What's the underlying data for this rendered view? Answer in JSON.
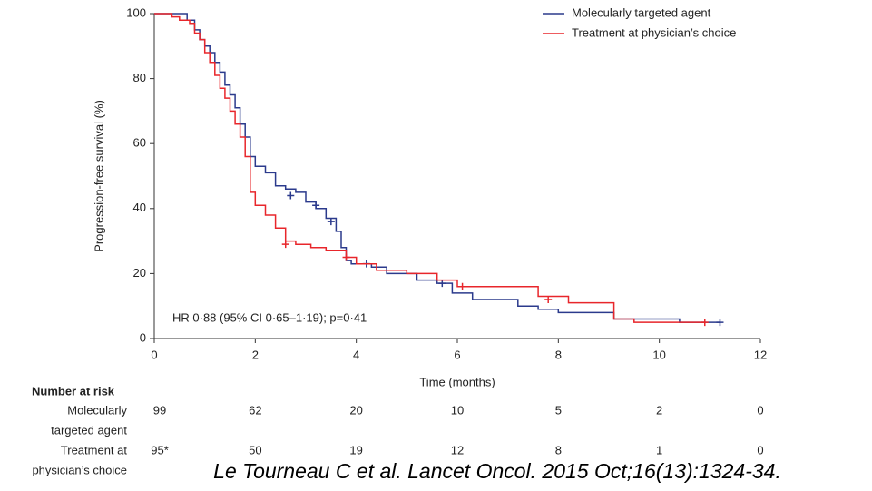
{
  "chart_data": {
    "type": "step",
    "ylabel": "Progression-free survival (%)",
    "xlabel": "Time (months)",
    "annotation": "HR 0·88 (95% CI 0·65–1·19); p=0·41",
    "xlim": [
      0,
      12
    ],
    "xticks": [
      0,
      2,
      4,
      6,
      8,
      10,
      12
    ],
    "ylim": [
      0,
      100
    ],
    "yticks": [
      0,
      20,
      40,
      60,
      80,
      100
    ],
    "grid": false,
    "legend": "upper right",
    "series": [
      {
        "name": "Molecularly targeted agent",
        "color": "#2b3a8c",
        "x": [
          0,
          0.65,
          0.65,
          0.8,
          0.8,
          0.9,
          0.9,
          1.0,
          1.0,
          1.1,
          1.1,
          1.2,
          1.2,
          1.3,
          1.3,
          1.4,
          1.4,
          1.5,
          1.5,
          1.6,
          1.6,
          1.7,
          1.7,
          1.8,
          1.8,
          1.9,
          1.9,
          2.0,
          2.0,
          2.2,
          2.2,
          2.4,
          2.4,
          2.6,
          2.6,
          2.8,
          2.8,
          3.0,
          3.0,
          3.2,
          3.2,
          3.4,
          3.4,
          3.6,
          3.6,
          3.7,
          3.7,
          3.8,
          3.8,
          3.9,
          3.9,
          4.3,
          4.3,
          4.6,
          4.6,
          5.2,
          5.2,
          5.6,
          5.6,
          5.9,
          5.9,
          6.3,
          6.3,
          7.2,
          7.2,
          7.6,
          7.6,
          8.0,
          8.0,
          9.1,
          9.1,
          10.4,
          10.4,
          11.2
        ],
        "values": [
          100,
          100,
          98,
          98,
          95,
          95,
          92,
          92,
          90,
          90,
          88,
          88,
          85,
          85,
          82,
          82,
          78,
          78,
          75,
          75,
          71,
          71,
          66,
          66,
          62,
          62,
          56,
          56,
          53,
          53,
          51,
          51,
          47,
          47,
          46,
          46,
          45,
          45,
          42,
          42,
          40,
          40,
          37,
          37,
          33,
          33,
          28,
          28,
          24,
          24,
          23,
          23,
          22,
          22,
          20,
          20,
          18,
          18,
          17,
          17,
          14,
          14,
          12,
          12,
          10,
          10,
          9,
          9,
          8,
          8,
          6,
          6,
          5,
          5
        ],
        "censored_x": [
          2.7,
          3.2,
          3.5,
          4.2,
          5.7,
          11.2
        ],
        "censored_values": [
          44,
          41,
          36,
          23,
          17,
          5
        ]
      },
      {
        "name": "Treatment at physician’s choice",
        "color": "#e8262b",
        "x": [
          0,
          0.35,
          0.35,
          0.5,
          0.5,
          0.7,
          0.7,
          0.8,
          0.8,
          0.9,
          0.9,
          1.0,
          1.0,
          1.1,
          1.1,
          1.2,
          1.2,
          1.3,
          1.3,
          1.4,
          1.4,
          1.5,
          1.5,
          1.6,
          1.6,
          1.7,
          1.7,
          1.8,
          1.8,
          1.9,
          1.9,
          2.0,
          2.0,
          2.2,
          2.2,
          2.4,
          2.4,
          2.6,
          2.6,
          2.8,
          2.8,
          3.1,
          3.1,
          3.4,
          3.4,
          3.8,
          3.8,
          4.0,
          4.0,
          4.4,
          4.4,
          5.0,
          5.0,
          5.6,
          5.6,
          6.0,
          6.0,
          7.6,
          7.6,
          8.2,
          8.2,
          9.1,
          9.1,
          9.5,
          9.5,
          10.9
        ],
        "values": [
          100,
          100,
          99,
          99,
          98,
          98,
          97,
          97,
          94,
          94,
          92,
          92,
          88,
          88,
          85,
          85,
          81,
          81,
          77,
          77,
          74,
          74,
          70,
          70,
          66,
          66,
          62,
          62,
          56,
          56,
          45,
          45,
          41,
          41,
          38,
          38,
          34,
          34,
          30,
          30,
          29,
          29,
          28,
          28,
          27,
          27,
          25,
          25,
          23,
          23,
          21,
          21,
          20,
          20,
          18,
          18,
          16,
          16,
          13,
          13,
          11,
          11,
          6,
          6,
          5,
          5
        ],
        "censored_x": [
          2.6,
          3.8,
          6.1,
          7.8,
          10.9
        ],
        "censored_values": [
          29,
          25,
          16,
          12,
          5
        ]
      }
    ],
    "risk_table": {
      "title": "Number at risk",
      "rows": [
        {
          "label": [
            "Molecularly",
            "targeted agent"
          ],
          "values": [
            99,
            62,
            20,
            10,
            5,
            2,
            0
          ]
        },
        {
          "label": [
            "Treatment at",
            "physician’s choice"
          ],
          "values": [
            {
              "value": 95,
              "label": "95*"
            },
            50,
            19,
            12,
            8,
            1,
            0
          ]
        }
      ]
    },
    "citation": "Le Tourneau C et al. Lancet Oncol. 2015 Oct;16(13):1324-34."
  }
}
